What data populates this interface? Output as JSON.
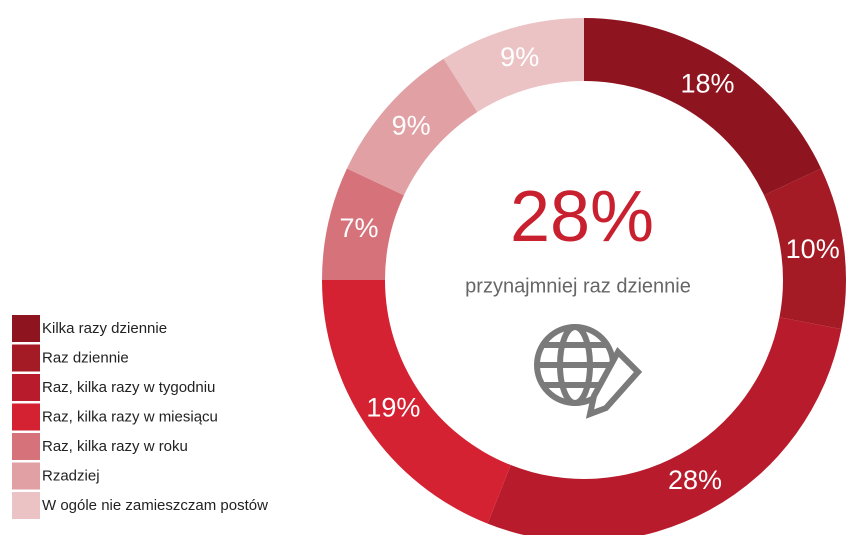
{
  "chart_data": {
    "type": "donut",
    "center_text": "28%",
    "center_subtitle": "przynajmniej raz dziennie",
    "categories": [
      "Kilka razy dziennie",
      "Raz dziennie",
      "Raz, kilka razy w tygodniu",
      "Raz, kilka razy w miesiącu",
      "Raz, kilka razy w roku",
      "Rzadziej",
      "W ogóle nie zamieszczam postów"
    ],
    "values": [
      18,
      10,
      28,
      19,
      7,
      9,
      9
    ],
    "value_labels": [
      "18%",
      "10%",
      "28%",
      "19%",
      "7%",
      "9%",
      "9%"
    ],
    "colors": [
      "#8e1420",
      "#a41a25",
      "#b81b2b",
      "#d42232",
      "#d6727a",
      "#e0a0a4",
      "#ecc3c5"
    ],
    "legend": "bottom-left"
  }
}
